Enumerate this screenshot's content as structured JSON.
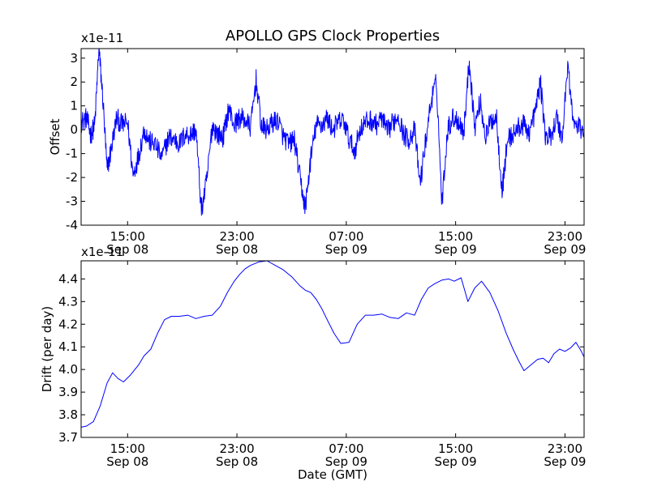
{
  "chart_data": [
    {
      "type": "line",
      "title": "APOLLO GPS Clock Properties",
      "ylabel": "Offset",
      "xlabel": "",
      "scale_note": "x1e-11",
      "units_multiplier": 1e-11,
      "ylim": [
        -4,
        3.4
      ],
      "yticks": [
        -4,
        -3,
        -2,
        -1,
        0,
        1,
        2,
        3
      ],
      "ytick_labels": [
        "-4",
        "-3",
        "-2",
        "-1",
        "0",
        "1",
        "2",
        "3"
      ],
      "xlim": [
        11.6,
        48.4
      ],
      "xticks": [
        15,
        23,
        31,
        39,
        47
      ],
      "xtick_labels": [
        {
          "time": "15:00",
          "date": "Sep 08"
        },
        {
          "time": "23:00",
          "date": "Sep 08"
        },
        {
          "time": "07:00",
          "date": "Sep 09"
        },
        {
          "time": "15:00",
          "date": "Sep 09"
        },
        {
          "time": "23:00",
          "date": "Sep 09"
        }
      ],
      "grid": false,
      "color": "#0000ff",
      "series": [
        {
          "x": [
            11.6,
            12.0,
            12.3,
            12.6,
            12.9,
            13.2,
            13.5,
            13.8,
            14.2,
            14.6,
            15.0,
            15.4,
            15.8,
            16.2,
            16.6,
            17.0,
            17.5,
            18.0,
            18.4,
            18.8,
            19.2,
            19.6,
            20.0,
            20.4,
            20.8,
            21.2,
            21.6,
            22.0,
            22.4,
            22.8,
            23.2,
            23.6,
            24.0,
            24.4,
            24.8,
            25.2,
            25.6,
            26.0,
            26.4,
            26.8,
            27.2,
            27.6,
            28.0,
            28.4,
            28.8,
            29.2,
            29.6,
            30.0,
            30.4,
            30.8,
            31.2,
            31.6,
            32.0,
            32.4,
            32.8,
            33.2,
            33.6,
            34.0,
            34.4,
            34.8,
            35.2,
            35.6,
            36.0,
            36.4,
            36.8,
            37.2,
            37.6,
            38.0,
            38.4,
            38.8,
            39.2,
            39.6,
            40.0,
            40.4,
            40.8,
            41.2,
            41.6,
            42.0,
            42.4,
            42.8,
            43.2,
            43.6,
            44.0,
            44.4,
            44.8,
            45.2,
            45.6,
            46.0,
            46.4,
            46.8,
            47.2,
            47.6,
            48.0,
            48.4
          ],
          "values": [
            0.3,
            0.5,
            -0.2,
            0.2,
            3.4,
            1.2,
            -1.7,
            -0.8,
            0.5,
            0.2,
            0.3,
            -1.9,
            -1.1,
            0.0,
            -0.5,
            -0.6,
            -1.2,
            -0.3,
            -0.4,
            -0.6,
            -0.2,
            -0.2,
            0.0,
            -3.4,
            -2.1,
            0.2,
            -0.2,
            -0.3,
            0.9,
            0.2,
            0.5,
            0.4,
            0.1,
            2.1,
            0.1,
            0.0,
            0.3,
            0.4,
            -0.3,
            -0.6,
            -0.4,
            -2.0,
            -3.3,
            -1.2,
            0.2,
            0.2,
            0.5,
            0.0,
            0.3,
            0.4,
            -0.4,
            -0.9,
            0.0,
            0.3,
            0.4,
            0.2,
            0.5,
            -0.1,
            0.3,
            0.6,
            -0.2,
            -0.4,
            0.0,
            -2.3,
            -0.5,
            1.2,
            2.0,
            -3.1,
            0.0,
            0.5,
            0.4,
            -0.1,
            2.9,
            0.1,
            1.2,
            -0.3,
            0.4,
            0.5,
            -2.6,
            -0.4,
            -0.2,
            0.1,
            0.2,
            -0.1,
            0.7,
            2.0,
            -0.4,
            -0.2,
            0.5,
            -0.4,
            2.8,
            0.3,
            0.1,
            0.0
          ]
        }
      ]
    },
    {
      "type": "line",
      "title": "",
      "ylabel": "Drift (per day)",
      "xlabel": "Date (GMT)",
      "scale_note": "x1e-11",
      "units_multiplier": 1e-11,
      "ylim": [
        3.7,
        4.48
      ],
      "yticks": [
        3.7,
        3.8,
        3.9,
        4.0,
        4.1,
        4.2,
        4.3,
        4.4
      ],
      "ytick_labels": [
        "3.7",
        "3.8",
        "3.9",
        "4.0",
        "4.1",
        "4.2",
        "4.3",
        "4.4"
      ],
      "xlim": [
        11.6,
        48.4
      ],
      "xticks": [
        15,
        23,
        31,
        39,
        47
      ],
      "xtick_labels": [
        {
          "time": "15:00",
          "date": "Sep 08"
        },
        {
          "time": "23:00",
          "date": "Sep 08"
        },
        {
          "time": "07:00",
          "date": "Sep 09"
        },
        {
          "time": "15:00",
          "date": "Sep 09"
        },
        {
          "time": "23:00",
          "date": "Sep 09"
        }
      ],
      "grid": false,
      "color": "#0000ff",
      "series": [
        {
          "x": [
            11.6,
            12.0,
            12.5,
            13.0,
            13.5,
            13.9,
            14.3,
            14.7,
            15.2,
            15.8,
            16.2,
            16.7,
            17.2,
            17.7,
            18.2,
            18.8,
            19.4,
            20.0,
            20.6,
            21.2,
            21.8,
            22.3,
            22.8,
            23.2,
            23.6,
            24.0,
            24.6,
            25.2,
            25.8,
            26.4,
            27.0,
            27.6,
            28.0,
            28.4,
            28.8,
            29.2,
            29.6,
            30.1,
            30.6,
            31.2,
            31.8,
            32.4,
            33.0,
            33.6,
            34.2,
            34.8,
            35.4,
            36.0,
            36.5,
            37.0,
            37.5,
            38.0,
            38.5,
            38.9,
            39.4,
            39.9,
            40.4,
            40.9,
            41.5,
            42.1,
            42.7,
            43.2,
            43.6,
            44.0,
            44.5,
            45.0,
            45.4,
            45.8,
            46.2,
            46.6,
            47.0,
            47.4,
            47.8,
            48.2,
            48.4
          ],
          "values": [
            3.745,
            3.75,
            3.77,
            3.84,
            3.94,
            3.985,
            3.96,
            3.945,
            3.975,
            4.02,
            4.06,
            4.09,
            4.16,
            4.22,
            4.235,
            4.235,
            4.24,
            4.225,
            4.235,
            4.24,
            4.28,
            4.34,
            4.39,
            4.42,
            4.445,
            4.46,
            4.475,
            4.48,
            4.46,
            4.44,
            4.41,
            4.37,
            4.35,
            4.34,
            4.31,
            4.27,
            4.22,
            4.16,
            4.115,
            4.12,
            4.2,
            4.24,
            4.24,
            4.245,
            4.23,
            4.225,
            4.25,
            4.24,
            4.31,
            4.36,
            4.38,
            4.395,
            4.4,
            4.39,
            4.405,
            4.3,
            4.36,
            4.39,
            4.34,
            4.26,
            4.16,
            4.09,
            4.04,
            3.995,
            4.02,
            4.045,
            4.05,
            4.03,
            4.07,
            4.09,
            4.08,
            4.095,
            4.12,
            4.08,
            4.055
          ]
        }
      ]
    }
  ]
}
